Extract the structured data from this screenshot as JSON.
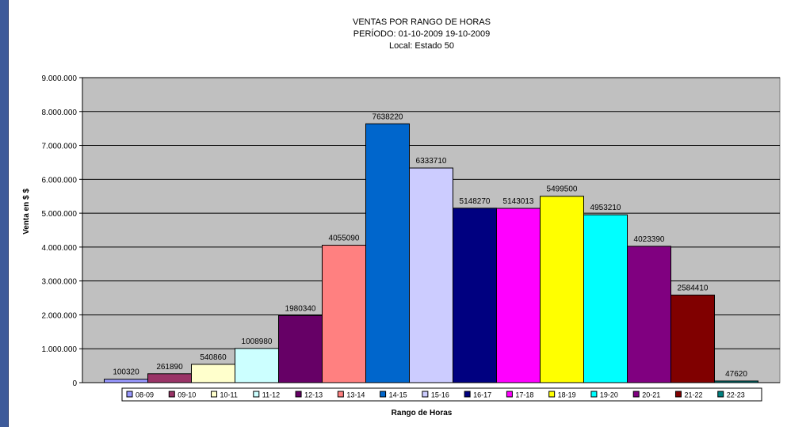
{
  "colors": {
    "page_border": "#3d5a9a",
    "plot_background": "#c0c0c0",
    "gridline": "#000000"
  },
  "chart_data": {
    "type": "bar",
    "title": "VENTAS POR RANGO DE HORAS",
    "subtitle": "PERÍODO: 01-10-2009  19-10-2009",
    "subtitle2": "Local: Estado 50",
    "xlabel": "Rango de Horas",
    "ylabel": "Venta en $ $",
    "ylim": [
      0,
      9000000
    ],
    "yticks": [
      {
        "value": 0,
        "label": "0"
      },
      {
        "value": 1000000,
        "label": "1.000.000"
      },
      {
        "value": 2000000,
        "label": "2.000.000"
      },
      {
        "value": 3000000,
        "label": "3.000.000"
      },
      {
        "value": 4000000,
        "label": "4.000.000"
      },
      {
        "value": 5000000,
        "label": "5.000.000"
      },
      {
        "value": 6000000,
        "label": "6.000.000"
      },
      {
        "value": 7000000,
        "label": "7.000.000"
      },
      {
        "value": 8000000,
        "label": "8.000.000"
      },
      {
        "value": 9000000,
        "label": "9.000.000"
      }
    ],
    "grid": true,
    "legend_position": "bottom",
    "series": [
      {
        "name": "08-09",
        "value": 100320,
        "label": "100320",
        "color": "#9999ff"
      },
      {
        "name": "09-10",
        "value": 261890,
        "label": "261890",
        "color": "#993366"
      },
      {
        "name": "10-11",
        "value": 540860,
        "label": "540860",
        "color": "#ffffcc"
      },
      {
        "name": "11-12",
        "value": 1008980,
        "label": "1008980",
        "color": "#ccffff"
      },
      {
        "name": "12-13",
        "value": 1980340,
        "label": "1980340",
        "color": "#660066"
      },
      {
        "name": "13-14",
        "value": 4055090,
        "label": "4055090",
        "color": "#ff8080"
      },
      {
        "name": "14-15",
        "value": 7638220,
        "label": "7638220",
        "color": "#0066cc"
      },
      {
        "name": "15-16",
        "value": 6333710,
        "label": "6333710",
        "color": "#ccccff"
      },
      {
        "name": "16-17",
        "value": 5148270,
        "label": "5148270",
        "color": "#000080"
      },
      {
        "name": "17-18",
        "value": 5143013,
        "label": "5143013",
        "color": "#ff00ff"
      },
      {
        "name": "18-19",
        "value": 5499500,
        "label": "5499500",
        "color": "#ffff00"
      },
      {
        "name": "19-20",
        "value": 4953210,
        "label": "4953210",
        "color": "#00ffff"
      },
      {
        "name": "20-21",
        "value": 4023390,
        "label": "4023390",
        "color": "#800080"
      },
      {
        "name": "21-22",
        "value": 2584410,
        "label": "2584410",
        "color": "#800000"
      },
      {
        "name": "22-23",
        "value": 47620,
        "label": "47620",
        "color": "#008080"
      }
    ]
  }
}
